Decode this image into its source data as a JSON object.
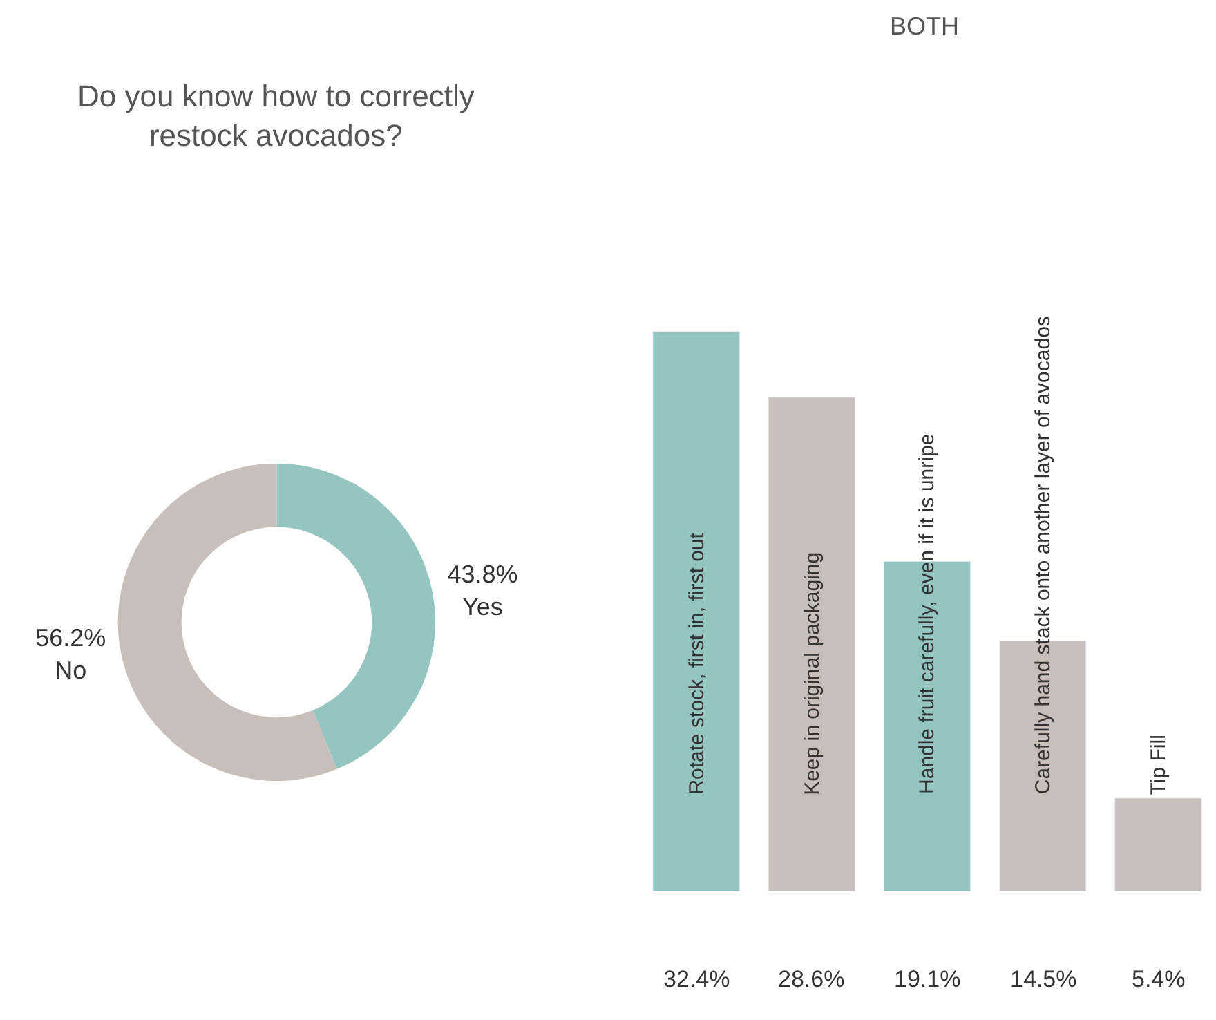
{
  "chart_data": [
    {
      "type": "donut",
      "title": "Do you know how to correctly\nrestock avocados?",
      "categories": [
        "Yes",
        "No"
      ],
      "values": [
        43.8,
        56.2
      ],
      "colors": [
        "#94c5c0",
        "#c8bfbb"
      ],
      "value_labels": [
        "43.8%",
        "56.2%"
      ]
    },
    {
      "type": "bar",
      "title": "BOTH",
      "tick_labels": false,
      "categories": [
        "Rotate stock, first in, first out",
        "Keep in original packaging",
        "Handle fruit carefully, even if it is unripe",
        "Carefully hand stack onto another layer of avocados",
        "Tip Fill"
      ],
      "values": [
        32.4,
        28.6,
        19.1,
        14.5,
        5.4
      ],
      "colors": [
        "#94c5c0",
        "#c8bfbb",
        "#94c5c0",
        "#c8bfbb",
        "#c8bfbb"
      ],
      "value_labels": [
        "32.4%",
        "28.6%",
        "19.1%",
        "14.5%",
        "5.4%"
      ]
    }
  ]
}
